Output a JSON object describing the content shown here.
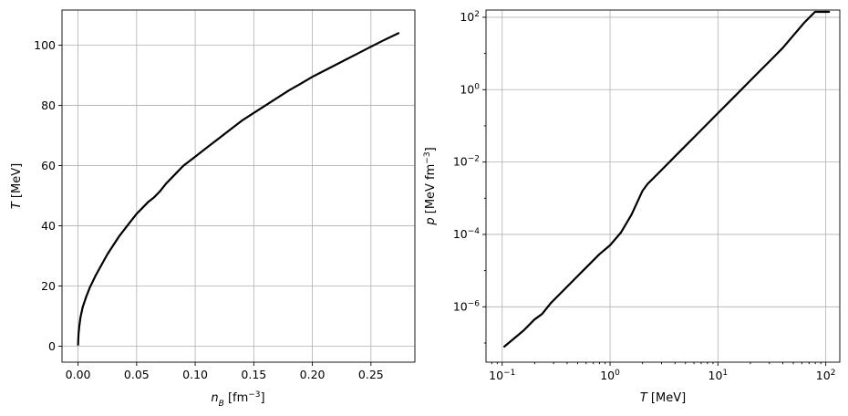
{
  "chart_data": [
    {
      "type": "line",
      "xlabel_italic": "n",
      "xlabel_sub": "B",
      "xlabel_rest": " [fm",
      "xlabel_sup": "−3",
      "xlabel_close": "]",
      "ylabel_italic": "T",
      "ylabel_rest": " [MeV]",
      "xlim": [
        -0.0137,
        0.2875
      ],
      "ylim": [
        -5.3,
        111.7
      ],
      "x_scale": "linear",
      "y_scale": "linear",
      "grid": true,
      "x_ticks": [
        0.0,
        0.05,
        0.1,
        0.15,
        0.2,
        0.25
      ],
      "x_tick_labels": [
        "0.00",
        "0.05",
        "0.10",
        "0.15",
        "0.20",
        "0.25"
      ],
      "y_ticks": [
        0,
        20,
        40,
        60,
        80,
        100
      ],
      "y_tick_labels": [
        "0",
        "20",
        "40",
        "60",
        "80",
        "100"
      ],
      "series": [
        {
          "x": [
            0.0,
            0.0004,
            0.001,
            0.002,
            0.004,
            0.007,
            0.01,
            0.015,
            0.02,
            0.025,
            0.03,
            0.035,
            0.04,
            0.045,
            0.05,
            0.055,
            0.06,
            0.065,
            0.07,
            0.075,
            0.08,
            0.085,
            0.09,
            0.1,
            0.11,
            0.12,
            0.13,
            0.14,
            0.15,
            0.16,
            0.17,
            0.18,
            0.19,
            0.2,
            0.21,
            0.22,
            0.23,
            0.24,
            0.25,
            0.26,
            0.2735
          ],
          "y": [
            0.5,
            4,
            6.5,
            9.5,
            13,
            16.5,
            19.5,
            23.5,
            27,
            30.5,
            33.5,
            36.5,
            39,
            41.5,
            44,
            46,
            48,
            49.5,
            51.5,
            54,
            56,
            58,
            60,
            63,
            66,
            69,
            72,
            75,
            77.5,
            80,
            82.5,
            85,
            87.2,
            89.5,
            91.5,
            93.5,
            95.5,
            97.5,
            99.5,
            101.5,
            104
          ]
        }
      ]
    },
    {
      "type": "line",
      "xlabel_italic": "T",
      "xlabel_rest": " [MeV]",
      "ylabel_italic": "p",
      "ylabel_rest": " [MeV fm",
      "ylabel_sup": "−3",
      "ylabel_close": "]",
      "xlim_log10": [
        -1.15,
        2.13
      ],
      "ylim_log10": [
        -7.53,
        2.2
      ],
      "x_scale": "log",
      "y_scale": "log",
      "grid": true,
      "x_ticks_exp": [
        -1,
        0,
        1,
        2
      ],
      "x_tick_base": "10",
      "x_tick_exps": [
        "−1",
        "0",
        "1",
        "2"
      ],
      "y_ticks_exp": [
        -6,
        -4,
        -2,
        0,
        2
      ],
      "y_tick_base": "10",
      "y_tick_exps": [
        "−6",
        "−4",
        "−2",
        "0",
        "2"
      ],
      "series": [
        {
          "log10_x": [
            -0.98,
            -0.9,
            -0.8,
            -0.7,
            -0.63,
            -0.55,
            -0.5,
            -0.4,
            -0.3,
            -0.2,
            -0.1,
            0.0,
            0.1,
            0.2,
            0.3,
            0.35,
            0.4,
            0.5,
            0.6,
            0.7,
            0.8,
            0.9,
            1.0,
            1.1,
            1.2,
            1.3,
            1.4,
            1.5,
            1.6,
            1.7,
            1.8,
            1.9,
            2.0,
            2.03
          ],
          "log10_y": [
            -7.1,
            -6.9,
            -6.65,
            -6.35,
            -6.2,
            -5.9,
            -5.75,
            -5.45,
            -5.15,
            -4.85,
            -4.55,
            -4.3,
            -3.95,
            -3.45,
            -2.8,
            -2.6,
            -2.45,
            -2.15,
            -1.85,
            -1.55,
            -1.25,
            -0.95,
            -0.65,
            -0.35,
            -0.05,
            0.25,
            0.55,
            0.85,
            1.15,
            1.5,
            1.85,
            2.2,
            2.6,
            2.8
          ]
        }
      ]
    }
  ]
}
